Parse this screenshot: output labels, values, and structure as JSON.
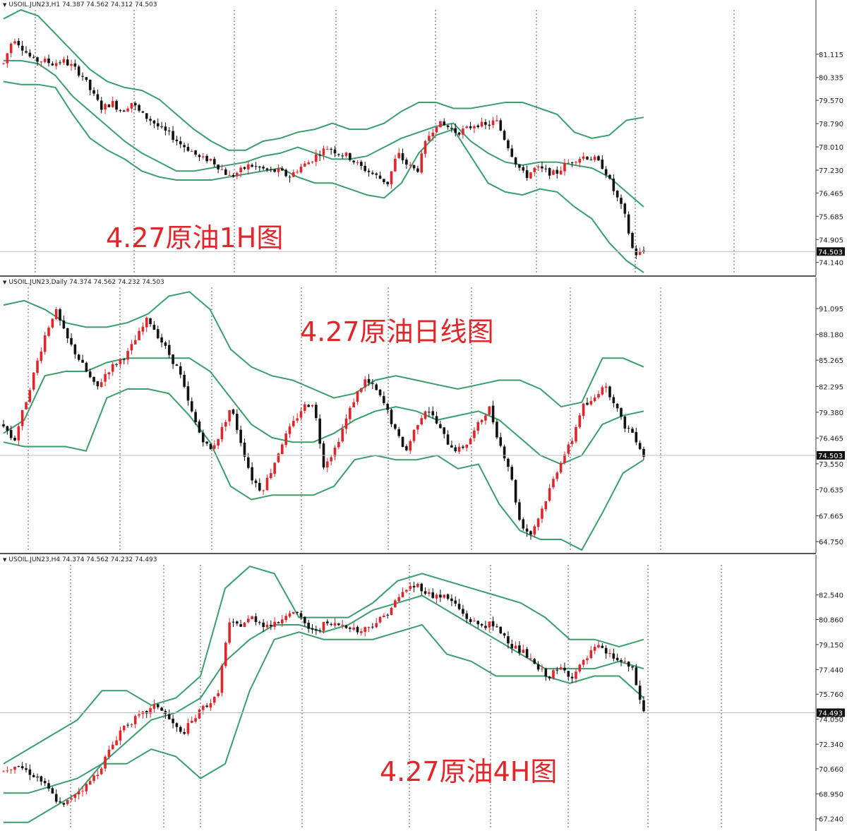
{
  "colors": {
    "band": "#3a9e6e",
    "up": "#e0262a",
    "down": "#111111",
    "caption": "#e0262a",
    "grid": "#555555"
  },
  "chart_data": [
    {
      "type": "candlestick",
      "header": "USOIL.JUN23,H1  74.387 74.562 74.312 74.503",
      "caption": "4.27原油1H图",
      "ylim": [
        73.8,
        82.6
      ],
      "y_ticks": [
        "81.115",
        "80.335",
        "79.570",
        "78.790",
        "78.010",
        "77.230",
        "76.465",
        "75.685",
        "74.905",
        "74.140"
      ],
      "last_price": "74.503",
      "trend": [
        80.8,
        81.7,
        81.3,
        80.9,
        80.9,
        80.8,
        80.9,
        80.7,
        80.4,
        79.8,
        79.3,
        79.5,
        79.2,
        79.5,
        79.1,
        78.9,
        78.6,
        78.4,
        78.1,
        77.9,
        77.6,
        77.6,
        77.3,
        77.0,
        77.2,
        77.4,
        77.3,
        77.2,
        77.2,
        77.0,
        77.3,
        77.5,
        77.8,
        78.0,
        77.8,
        77.7,
        77.4,
        77.2,
        77.0,
        76.8,
        77.8,
        77.4,
        77.2,
        78.3,
        78.8,
        78.7,
        78.5,
        78.6,
        78.8,
        78.7,
        78.9,
        78.2,
        77.5,
        77.0,
        77.3,
        77.2,
        77.1,
        77.4,
        77.6,
        77.7,
        77.6,
        77.3,
        76.5,
        75.8,
        74.4,
        74.5
      ],
      "band_upper": [
        82.3,
        82.6,
        82.4,
        81.8,
        81.2,
        80.6,
        80.2,
        80.0,
        79.9,
        79.6,
        79.1,
        78.6,
        78.2,
        77.9,
        77.9,
        78.2,
        78.3,
        78.5,
        78.6,
        78.8,
        78.6,
        78.6,
        78.8,
        79.2,
        79.5,
        79.5,
        79.3,
        79.3,
        79.4,
        79.5,
        79.5,
        79.3,
        79.1,
        78.5,
        78.3,
        78.4,
        78.9,
        79.0
      ],
      "band_mid": [
        80.9,
        80.9,
        80.8,
        80.4,
        79.7,
        79.2,
        78.7,
        78.2,
        77.8,
        77.5,
        77.2,
        77.2,
        77.3,
        77.4,
        77.5,
        77.7,
        77.8,
        78.0,
        77.8,
        77.6,
        77.6,
        77.7,
        78.0,
        78.3,
        78.5,
        78.7,
        78.8,
        78.2,
        77.8,
        77.5,
        77.4,
        77.5,
        77.5,
        77.4,
        77.3,
        77.0,
        76.5,
        76.0
      ],
      "band_lower": [
        80.2,
        80.1,
        80.1,
        80.0,
        79.1,
        78.3,
        77.9,
        77.6,
        77.2,
        77.0,
        76.9,
        76.9,
        76.9,
        77.0,
        77.1,
        77.2,
        77.3,
        77.0,
        76.8,
        76.8,
        76.6,
        76.4,
        76.3,
        76.8,
        77.8,
        78.4,
        78.6,
        77.7,
        76.8,
        76.5,
        76.4,
        76.6,
        76.5,
        76.0,
        75.6,
        74.8,
        74.2,
        73.8
      ]
    },
    {
      "type": "candlestick",
      "header": "USOIL.JUN23,Daily  74.374 74.562 74.232 74.503",
      "caption": "4.27原油日线图",
      "ylim": [
        63.8,
        93.5
      ],
      "y_ticks": [
        "91.095",
        "88.180",
        "85.265",
        "82.295",
        "79.380",
        "76.465",
        "73.550",
        "70.635",
        "67.665",
        "64.750"
      ],
      "last_price": "74.503",
      "trend": [
        78.0,
        76.0,
        80.0,
        84.0,
        88.0,
        91.0,
        88.0,
        86.0,
        84.0,
        82.0,
        84.0,
        85.0,
        86.0,
        88.0,
        90.0,
        88.0,
        86.0,
        84.0,
        80.0,
        77.0,
        75.0,
        77.0,
        80.0,
        76.0,
        72.0,
        70.5,
        73.0,
        76.0,
        78.0,
        80.0,
        80.5,
        73.5,
        75.0,
        78.0,
        81.0,
        83.0,
        82.0,
        80.0,
        77.0,
        75.0,
        78.0,
        80.0,
        78.0,
        76.0,
        75.0,
        76.0,
        78.0,
        80.0,
        76.0,
        73.0,
        67.0,
        65.5,
        68.0,
        71.0,
        74.0,
        76.0,
        80.0,
        80.5,
        82.5,
        81.0,
        78.0,
        77.0,
        74.5
      ],
      "band_upper": [
        91.5,
        92.0,
        91.0,
        89.5,
        89.0,
        89.0,
        89.5,
        90.5,
        92.5,
        93.0,
        91.0,
        86.5,
        84.5,
        83.5,
        83.0,
        82.0,
        81.0,
        81.5,
        83.0,
        83.5,
        83.0,
        82.5,
        82.0,
        82.5,
        83.0,
        83.0,
        82.0,
        80.0,
        80.5,
        85.5,
        85.5,
        84.5
      ],
      "band_mid": [
        77.0,
        78.5,
        83.5,
        84.0,
        84.0,
        85.0,
        85.5,
        85.5,
        85.5,
        85.5,
        84.0,
        81.0,
        78.0,
        76.5,
        76.0,
        76.0,
        77.0,
        78.5,
        79.5,
        80.0,
        79.5,
        78.5,
        79.0,
        79.5,
        78.5,
        76.5,
        74.5,
        73.5,
        74.5,
        78.0,
        79.0,
        79.5
      ],
      "band_lower": [
        76.0,
        75.5,
        75.5,
        75.5,
        75.0,
        81.0,
        82.0,
        82.0,
        81.5,
        79.0,
        76.0,
        71.0,
        69.5,
        70.0,
        70.0,
        70.0,
        71.0,
        74.0,
        74.5,
        74.0,
        74.0,
        74.5,
        73.0,
        73.5,
        69.0,
        66.0,
        65.0,
        65.0,
        63.8,
        68.0,
        72.5,
        74.0
      ]
    },
    {
      "type": "candlestick",
      "header": "USOIL.JUN23,H4  74.374 74.562 74.232 74.493",
      "caption": "4.27原油4H图",
      "ylim": [
        66.6,
        84.6
      ],
      "y_ticks": [
        "82.540",
        "80.860",
        "79.150",
        "77.440",
        "75.760",
        "74.050",
        "72.340",
        "70.660",
        "68.950",
        "67.240"
      ],
      "last_price": "74.493",
      "trend": [
        70.5,
        71.0,
        70.5,
        70.0,
        69.0,
        68.0,
        69.0,
        69.5,
        70.5,
        72.0,
        73.5,
        74.0,
        74.5,
        75.0,
        74.0,
        73.0,
        74.0,
        75.0,
        75.5,
        80.5,
        80.5,
        81.0,
        80.5,
        80.5,
        81.5,
        81.0,
        80.0,
        80.5,
        80.5,
        80.5,
        80.0,
        80.5,
        81.0,
        82.0,
        83.0,
        83.2,
        82.5,
        82.5,
        82.0,
        81.0,
        80.5,
        80.5,
        80.0,
        79.0,
        78.5,
        77.5,
        77.0,
        77.5,
        77.0,
        78.0,
        79.0,
        78.5,
        78.0,
        77.5,
        74.5
      ],
      "band_upper": [
        71.0,
        72.0,
        73.0,
        74.0,
        76.0,
        76.0,
        75.0,
        75.5,
        77.0,
        83.0,
        84.5,
        84.0,
        81.0,
        81.0,
        81.0,
        82.0,
        83.5,
        84.0,
        83.5,
        83.0,
        82.5,
        82.0,
        81.0,
        79.5,
        79.5,
        79.0,
        79.5
      ],
      "band_mid": [
        69.0,
        69.0,
        69.5,
        70.0,
        71.0,
        72.5,
        74.0,
        74.5,
        75.5,
        78.0,
        79.5,
        80.5,
        80.5,
        80.0,
        80.5,
        81.5,
        82.0,
        82.5,
        81.5,
        80.5,
        79.5,
        78.5,
        77.5,
        77.5,
        77.5,
        78.0,
        77.5
      ],
      "band_lower": [
        67.0,
        67.0,
        68.0,
        69.0,
        71.0,
        71.0,
        72.0,
        71.5,
        70.0,
        71.0,
        76.0,
        79.5,
        80.0,
        79.5,
        79.5,
        79.5,
        80.0,
        80.5,
        78.5,
        78.0,
        77.0,
        77.0,
        77.0,
        76.5,
        77.0,
        77.0,
        75.5
      ]
    }
  ]
}
